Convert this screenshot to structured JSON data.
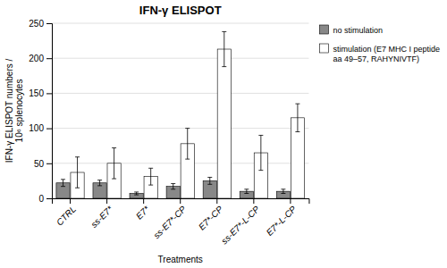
{
  "chart_data": {
    "type": "bar",
    "title": "IFN-γ ELISPOT",
    "xlabel": "Treatments",
    "ylabel": "IFN-γ ELISPOT numbers /\n10⁶ splenocytes",
    "categories": [
      "CTRL",
      "ss-E7*",
      "E7*",
      "ss-E7*-CP",
      "E7*-CP",
      "ss-E7*-L-CP",
      "E7*-L-CP"
    ],
    "series": [
      {
        "name": "no stimulation",
        "color": "#888888",
        "values": [
          22,
          22,
          7,
          17,
          25,
          10,
          10
        ],
        "errors": [
          5,
          4,
          2,
          4,
          5,
          3,
          3
        ]
      },
      {
        "name": "stimulation (E7 MHC I peptide\naa 49–57, RAHYNIVTF)",
        "color": "#ffffff",
        "values": [
          37,
          50,
          31,
          78,
          213,
          65,
          115
        ],
        "errors": [
          22,
          22,
          12,
          22,
          25,
          25,
          20
        ]
      }
    ],
    "ylim": [
      0,
      250
    ],
    "yticks": [
      0,
      50,
      100,
      150,
      200,
      250
    ],
    "grid": true,
    "legend": "upper right"
  }
}
